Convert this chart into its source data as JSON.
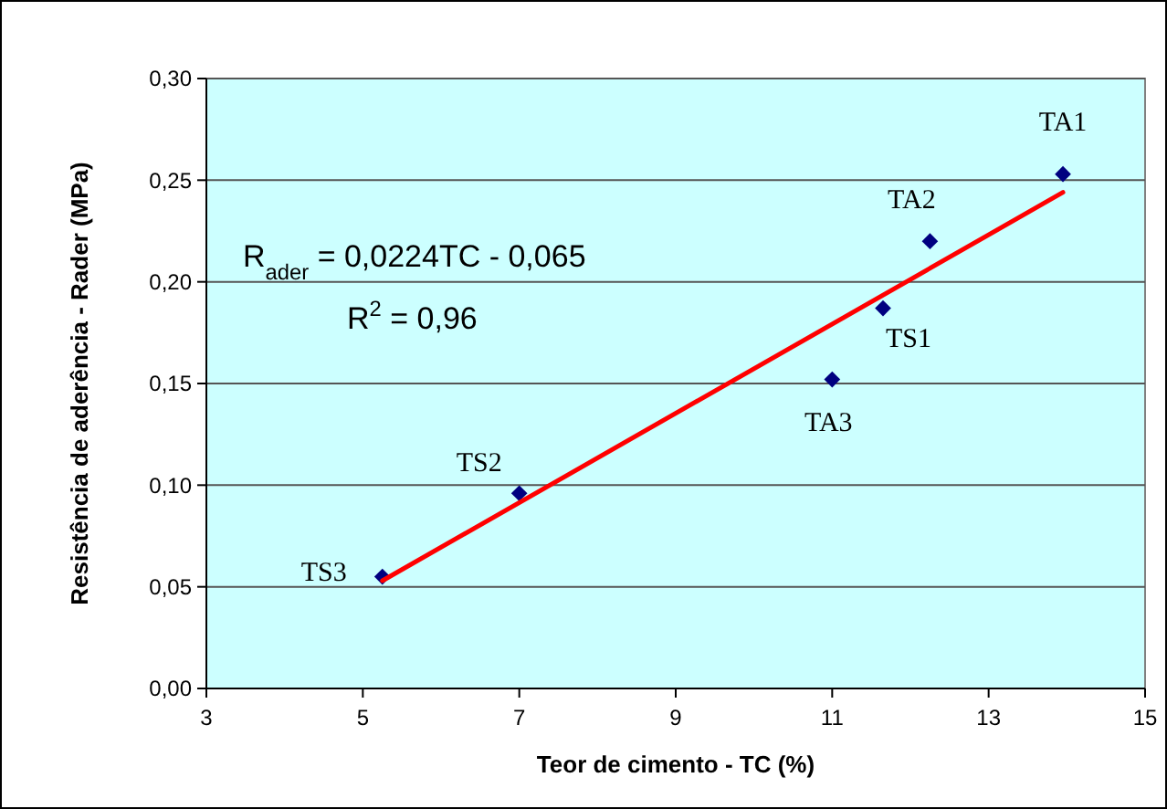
{
  "chart_data": {
    "type": "scatter",
    "xlabel": "Teor de cimento - TC (%)",
    "ylabel": "Resistência de aderência - Rader (MPa)",
    "xlim": [
      3,
      15
    ],
    "xticks": [
      3,
      5,
      7,
      9,
      11,
      13,
      15
    ],
    "ylim": [
      0,
      0.3
    ],
    "yticks": [
      {
        "value": 0,
        "label": "0,00"
      },
      {
        "value": 0.05,
        "label": "0,05"
      },
      {
        "value": 0.1,
        "label": "0,10"
      },
      {
        "value": 0.15,
        "label": "0,15"
      },
      {
        "value": 0.2,
        "label": "0,20"
      },
      {
        "value": 0.25,
        "label": "0,25"
      },
      {
        "value": 0.3,
        "label": "0,30"
      }
    ],
    "grid": "y",
    "series": [
      {
        "color": "#000080",
        "marker": "diamond",
        "x": [
          5.25,
          7.0,
          11.0,
          11.65,
          12.25,
          13.95
        ],
        "values": [
          0.055,
          0.096,
          0.152,
          0.187,
          0.22,
          0.253
        ]
      },
      {
        "type": "line",
        "color": "#ff0000",
        "line_style": "solid",
        "marker": "none",
        "x": [
          5.25,
          13.95
        ],
        "values": [
          0.053,
          0.244
        ]
      }
    ],
    "annotations": [
      {
        "text": "TS3",
        "x": 5.25,
        "y": 0.055
      },
      {
        "text": "TS2",
        "x": 7.0,
        "y": 0.096
      },
      {
        "text": "TA3",
        "x": 11.0,
        "y": 0.152
      },
      {
        "text": "TS1",
        "x": 11.65,
        "y": 0.187
      },
      {
        "text": "TA2",
        "x": 12.25,
        "y": 0.22
      },
      {
        "text": "TA1",
        "x": 13.95,
        "y": 0.253
      },
      "R$_{ader}$ = 0,0224TC - 0,065",
      "R$^{2}$ = 0,96"
    ]
  }
}
